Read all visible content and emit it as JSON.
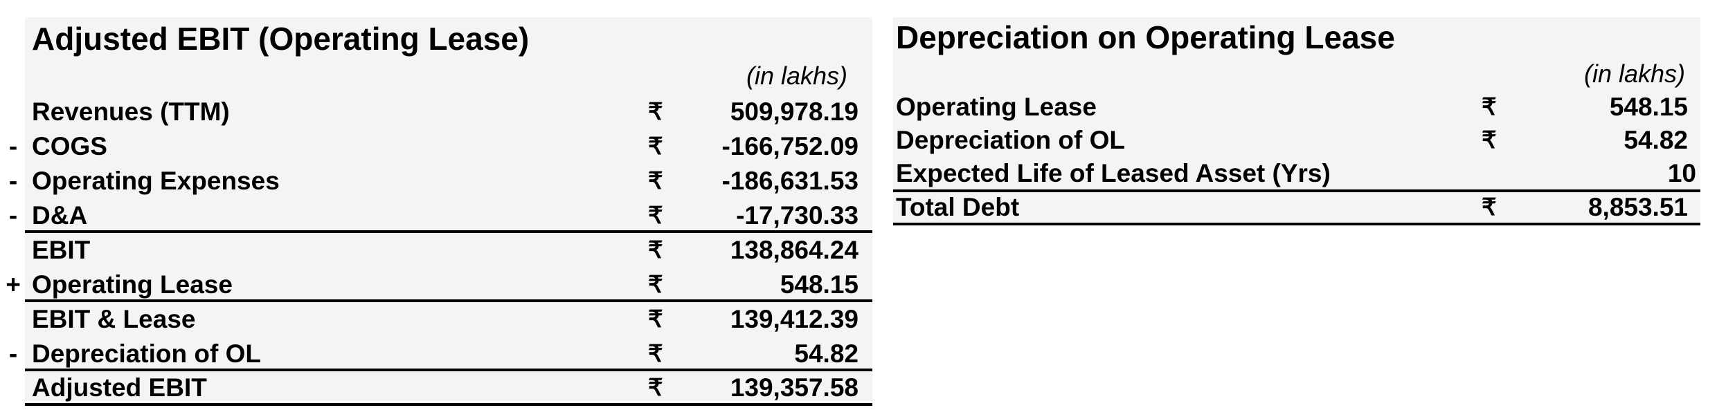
{
  "adjusted_ebit": {
    "title": "Adjusted EBIT (Operating Lease)",
    "unit": "(in lakhs)",
    "currency_symbol": "₹",
    "rows": [
      {
        "op": "",
        "label": "Revenues (TTM)",
        "value": "509,978.19"
      },
      {
        "op": "-",
        "label": "COGS",
        "value": "-166,752.09"
      },
      {
        "op": "-",
        "label": "Operating Expenses",
        "value": "-186,631.53"
      },
      {
        "op": "-",
        "label": "D&A",
        "value": "-17,730.33"
      },
      {
        "op": "",
        "label": "EBIT",
        "value": "138,864.24"
      },
      {
        "op": "+",
        "label": "Operating Lease",
        "value": "548.15"
      },
      {
        "op": "",
        "label": "EBIT & Lease",
        "value": "139,412.39"
      },
      {
        "op": "-",
        "label": "Depreciation of OL",
        "value": "54.82"
      },
      {
        "op": "",
        "label": "Adjusted EBIT",
        "value": "139,357.58"
      }
    ]
  },
  "depreciation": {
    "title": "Depreciation on Operating Lease",
    "unit": "(in lakhs)",
    "currency_symbol": "₹",
    "rows": [
      {
        "label": "Operating Lease",
        "value": "548.15"
      },
      {
        "label": "Depreciation of OL",
        "value": "54.82"
      },
      {
        "label": "Expected Life of Leased Asset (Yrs)",
        "value": "10"
      },
      {
        "label": "Total Debt",
        "value": "8,853.51"
      }
    ]
  }
}
